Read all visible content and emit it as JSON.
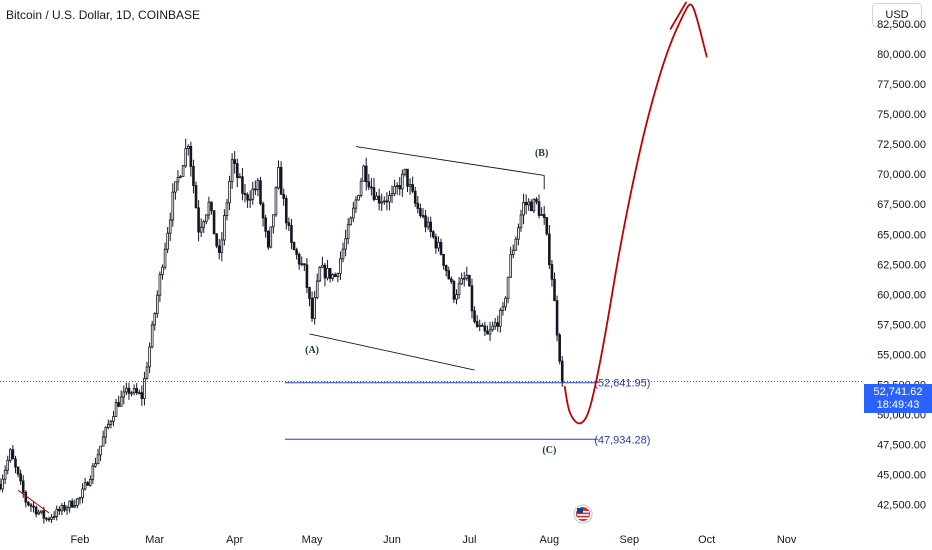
{
  "header": {
    "title": "Bitcoin / U.S. Dollar, 1D, COINBASE",
    "currency_label": "USD"
  },
  "price_tag": {
    "price": "52,741.62",
    "countdown": "18:49:43"
  },
  "colors": {
    "candle": "#131722",
    "projection": "#c00000",
    "level": "#2a3eb1",
    "price_line": "#2962ff"
  },
  "chart_data": {
    "type": "candlestick",
    "title": "Bitcoin / U.S. Dollar, 1D, COINBASE",
    "y_axis": {
      "position": "right",
      "ylim": [
        40800,
        84500
      ],
      "ticks": [
        "42,500.00",
        "45,000.00",
        "47,500.00",
        "50,000.00",
        "52,500.00",
        "55,000.00",
        "57,500.00",
        "60,000.00",
        "62,500.00",
        "65,000.00",
        "67,500.00",
        "70,000.00",
        "72,500.00",
        "75,000.00",
        "77,500.00",
        "80,000.00",
        "82,500.00"
      ],
      "tick_values": [
        42500,
        45000,
        47500,
        50000,
        52500,
        55000,
        57500,
        60000,
        62500,
        65000,
        67500,
        70000,
        72500,
        75000,
        77500,
        80000,
        82500
      ]
    },
    "x_axis": {
      "ticks": [
        "Feb",
        "Mar",
        "Apr",
        "May",
        "Jun",
        "Jul",
        "Aug",
        "Sep",
        "Oct",
        "Nov"
      ],
      "tick_days": [
        31,
        60,
        91,
        121,
        152,
        182,
        213,
        244,
        274,
        305
      ],
      "range_days": [
        0,
        335
      ],
      "unit": "days since Jan 1, 2024"
    },
    "price_anchors": [
      {
        "day": 0,
        "price": 44200
      },
      {
        "day": 4,
        "price": 46800
      },
      {
        "day": 10,
        "price": 42800
      },
      {
        "day": 18,
        "price": 41300
      },
      {
        "day": 27,
        "price": 42500
      },
      {
        "day": 31,
        "price": 43000
      },
      {
        "day": 36,
        "price": 45500
      },
      {
        "day": 40,
        "price": 48000
      },
      {
        "day": 45,
        "price": 50800
      },
      {
        "day": 50,
        "price": 52000
      },
      {
        "day": 55,
        "price": 51500
      },
      {
        "day": 59,
        "price": 57000
      },
      {
        "day": 63,
        "price": 62800
      },
      {
        "day": 67,
        "price": 68000
      },
      {
        "day": 73,
        "price": 72800
      },
      {
        "day": 77,
        "price": 65500
      },
      {
        "day": 81,
        "price": 67500
      },
      {
        "day": 85,
        "price": 63000
      },
      {
        "day": 90,
        "price": 71000
      },
      {
        "day": 95,
        "price": 68000
      },
      {
        "day": 100,
        "price": 69000
      },
      {
        "day": 104,
        "price": 63500
      },
      {
        "day": 108,
        "price": 70000
      },
      {
        "day": 113,
        "price": 64000
      },
      {
        "day": 118,
        "price": 62000
      },
      {
        "day": 121,
        "price": 58000
      },
      {
        "day": 124,
        "price": 62000
      },
      {
        "day": 130,
        "price": 61500
      },
      {
        "day": 136,
        "price": 66000
      },
      {
        "day": 141,
        "price": 70500
      },
      {
        "day": 146,
        "price": 68000
      },
      {
        "day": 152,
        "price": 68000
      },
      {
        "day": 157,
        "price": 70000
      },
      {
        "day": 161,
        "price": 67500
      },
      {
        "day": 166,
        "price": 65500
      },
      {
        "day": 171,
        "price": 63500
      },
      {
        "day": 176,
        "price": 60000
      },
      {
        "day": 181,
        "price": 61500
      },
      {
        "day": 184,
        "price": 57500
      },
      {
        "day": 189,
        "price": 56500
      },
      {
        "day": 195,
        "price": 58500
      },
      {
        "day": 198,
        "price": 63000
      },
      {
        "day": 203,
        "price": 67500
      },
      {
        "day": 208,
        "price": 67500
      },
      {
        "day": 211,
        "price": 66000
      },
      {
        "day": 214,
        "price": 61500
      },
      {
        "day": 216,
        "price": 57000
      },
      {
        "day": 218,
        "price": 52700
      }
    ],
    "levels": [
      {
        "label": "(52,641.95)",
        "value": 52641.95
      },
      {
        "label": "(47,934.28)",
        "value": 47934.28
      }
    ],
    "current_price": 52741.62,
    "wave_labels": [
      {
        "text": "(A)",
        "day": 121,
        "price": 55100
      },
      {
        "text": "(B)",
        "day": 210,
        "price": 71500
      },
      {
        "text": "(C)",
        "day": 213,
        "price": 46800
      }
    ],
    "channel": {
      "upper": [
        {
          "day": 138,
          "price": 72300
        },
        {
          "day": 211,
          "price": 69900
        }
      ],
      "lower": [
        {
          "day": 120,
          "price": 56700
        },
        {
          "day": 184,
          "price": 53700
        }
      ]
    },
    "projection_path": [
      {
        "day": 219,
        "price": 52300
      },
      {
        "day": 220,
        "price": 50700
      },
      {
        "day": 222,
        "price": 49600
      },
      {
        "day": 225,
        "price": 49100
      },
      {
        "day": 228,
        "price": 49900
      },
      {
        "day": 231,
        "price": 52500
      },
      {
        "day": 235,
        "price": 57000
      },
      {
        "day": 240,
        "price": 63500
      },
      {
        "day": 246,
        "price": 70000
      },
      {
        "day": 252,
        "price": 75500
      },
      {
        "day": 259,
        "price": 80500
      },
      {
        "day": 266,
        "price": 83800
      },
      {
        "day": 268,
        "price": 84300
      },
      {
        "day": 270,
        "price": 83200
      },
      {
        "day": 274,
        "price": 79800
      }
    ],
    "projection_arrow_tail": [
      {
        "day": 260,
        "price": 82100
      },
      {
        "day": 266,
        "price": 84300
      }
    ],
    "small_trendline": [
      {
        "day": 7,
        "price": 43700
      },
      {
        "day": 19,
        "price": 41800
      }
    ],
    "grid": false
  }
}
